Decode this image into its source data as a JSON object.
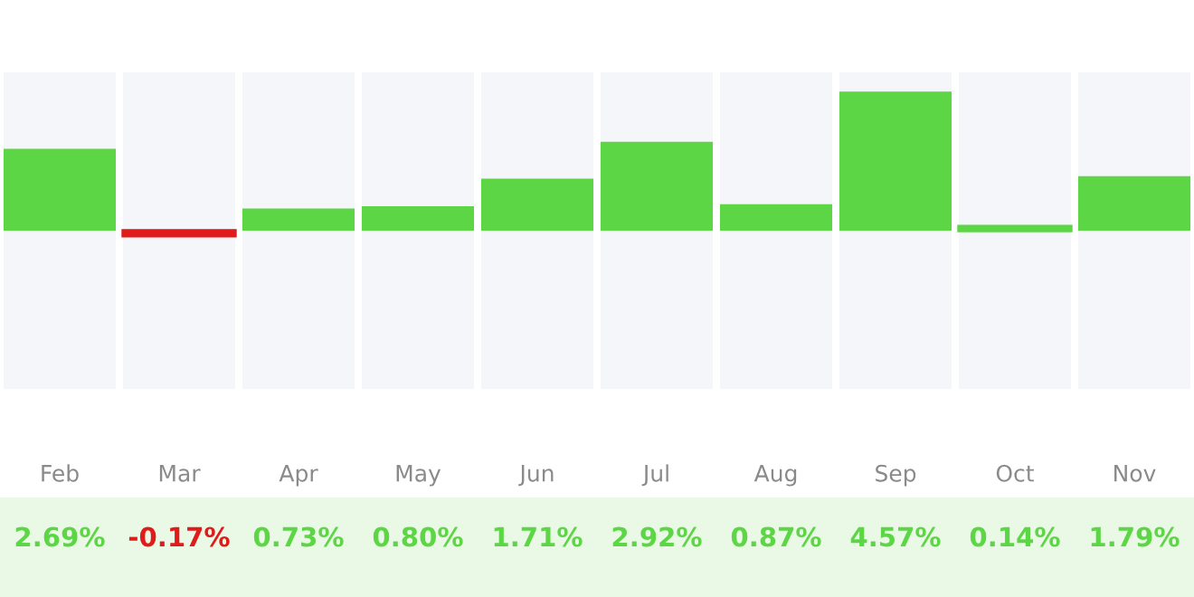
{
  "chart_data": {
    "type": "bar",
    "categories": [
      "Feb",
      "Mar",
      "Apr",
      "May",
      "Jun",
      "Jul",
      "Aug",
      "Sep",
      "Oct",
      "Nov"
    ],
    "values": [
      2.69,
      -0.17,
      0.73,
      0.8,
      1.71,
      2.92,
      0.87,
      4.57,
      0.14,
      1.79
    ],
    "colors": [
      "#5cd645",
      "#e01b1b",
      "#5cd645",
      "#5cd645",
      "#5cd645",
      "#5cd645",
      "#5cd645",
      "#5cd645",
      "#5cd645",
      "#5cd645"
    ],
    "value_labels": [
      "2.69%",
      "-0.17%",
      "0.73%",
      "0.80%",
      "1.71%",
      "2.92%",
      "0.87%",
      "4.57%",
      "0.14%",
      "1.79%"
    ],
    "ylim": [
      -5.2,
      5.2
    ],
    "tick_labels": "x",
    "grid": false,
    "legend": false
  }
}
